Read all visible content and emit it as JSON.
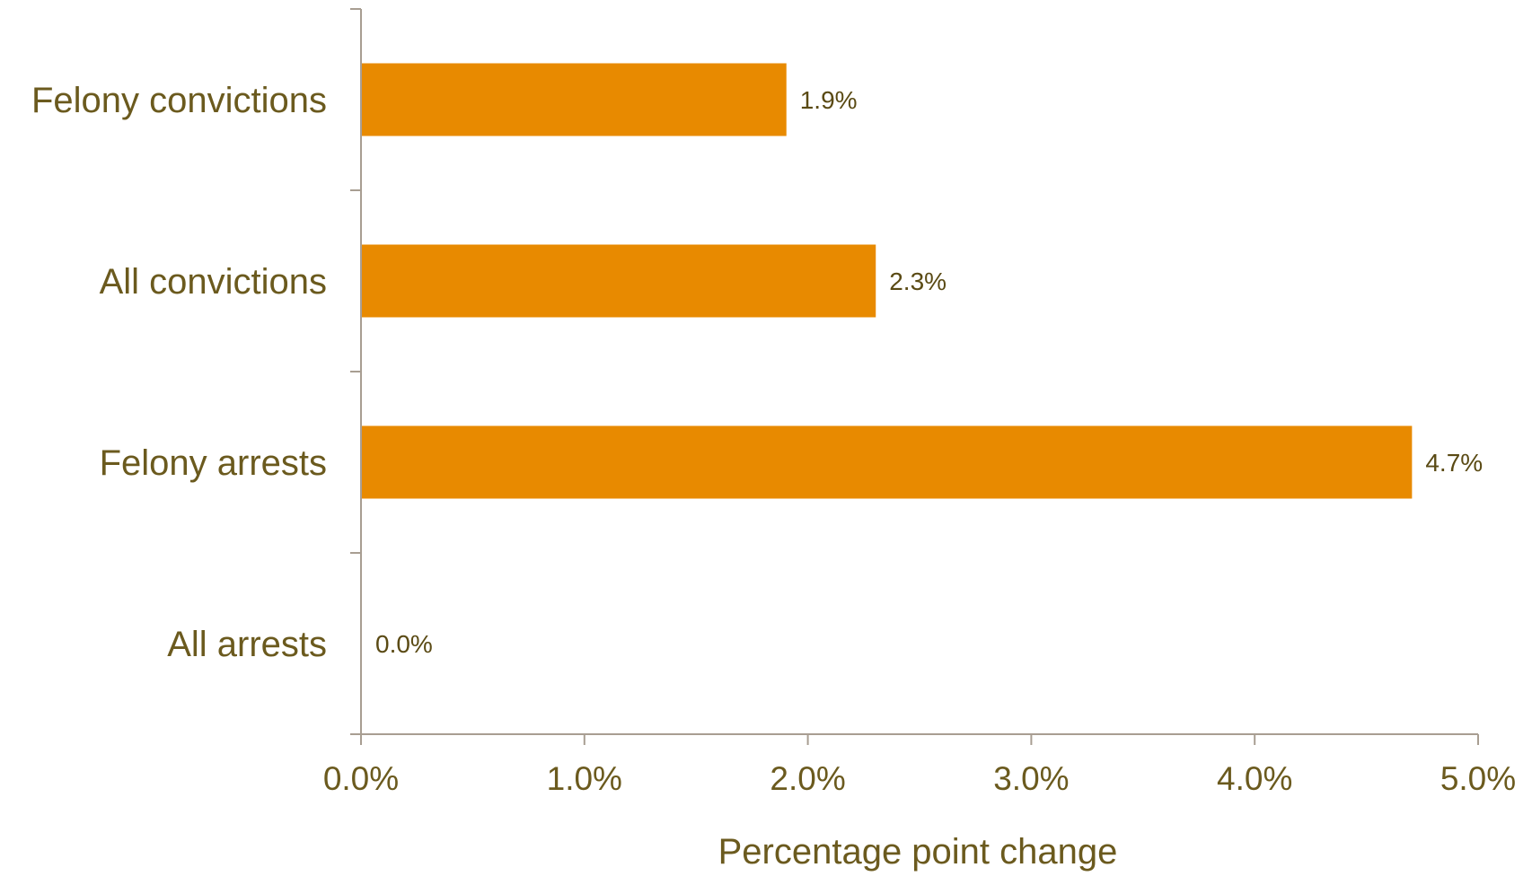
{
  "colors": {
    "bar": "#E88A00",
    "text": "#6B5A1E",
    "axis": "#A89E92",
    "data_label": "#5A4A14"
  },
  "chart_data": {
    "type": "bar",
    "orientation": "horizontal",
    "title": "",
    "xlabel": "Percentage point change",
    "ylabel": "",
    "categories": [
      "Felony convictions",
      "All convictions",
      "Felony arrests",
      "All arrests"
    ],
    "values": [
      1.9,
      2.3,
      4.7,
      0.0
    ],
    "data_labels": [
      "1.9%",
      "2.3%",
      "4.7%",
      "0.0%"
    ],
    "xlim": [
      0,
      5
    ],
    "xticks": [
      0,
      1,
      2,
      3,
      4,
      5
    ],
    "xtick_labels": [
      "0.0%",
      "1.0%",
      "2.0%",
      "3.0%",
      "4.0%",
      "5.0%"
    ],
    "grid": false,
    "legend": "none"
  }
}
